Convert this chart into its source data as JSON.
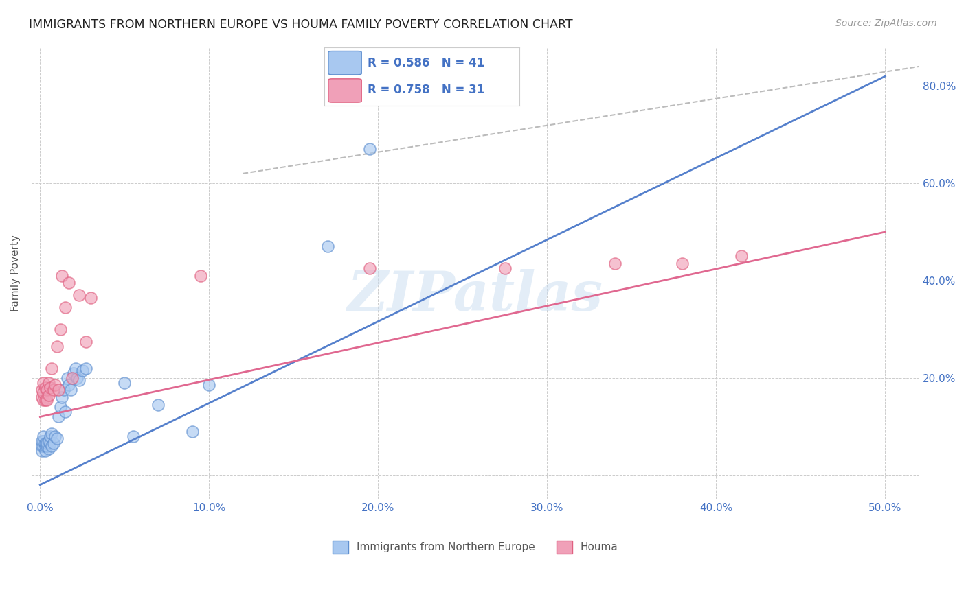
{
  "title": "IMMIGRANTS FROM NORTHERN EUROPE VS HOUMA FAMILY POVERTY CORRELATION CHART",
  "source": "Source: ZipAtlas.com",
  "ylabel": "Family Poverty",
  "xlim": [
    -0.005,
    0.52
  ],
  "ylim": [
    -0.05,
    0.88
  ],
  "x_ticks": [
    0.0,
    0.1,
    0.2,
    0.3,
    0.4,
    0.5
  ],
  "x_tick_labels": [
    "0.0%",
    "10.0%",
    "20.0%",
    "30.0%",
    "40.0%",
    "50.0%"
  ],
  "y_ticks": [
    0.0,
    0.2,
    0.4,
    0.6,
    0.8
  ],
  "y_tick_labels_right": [
    "",
    "20.0%",
    "40.0%",
    "60.0%",
    "80.0%"
  ],
  "legend_label1": "Immigrants from Northern Europe",
  "legend_label2": "Houma",
  "R1": 0.586,
  "N1": 41,
  "R2": 0.758,
  "N2": 31,
  "color_blue": "#A8C8F0",
  "color_blue_edge": "#6090D0",
  "color_pink": "#F0A0B8",
  "color_pink_edge": "#E06080",
  "color_blue_line": "#5580CC",
  "color_pink_line": "#E06890",
  "color_gray_dash": "#BBBBBB",
  "watermark": "ZIPatlas",
  "blue_line_x": [
    0.0,
    0.5
  ],
  "blue_line_y": [
    -0.02,
    0.82
  ],
  "pink_line_x": [
    0.0,
    0.5
  ],
  "pink_line_y": [
    0.12,
    0.5
  ],
  "dash_line_x": [
    0.12,
    0.52
  ],
  "dash_line_y": [
    0.62,
    0.84
  ],
  "blue_points": [
    [
      0.001,
      0.05
    ],
    [
      0.001,
      0.06
    ],
    [
      0.001,
      0.07
    ],
    [
      0.002,
      0.06
    ],
    [
      0.002,
      0.07
    ],
    [
      0.002,
      0.08
    ],
    [
      0.003,
      0.05
    ],
    [
      0.003,
      0.06
    ],
    [
      0.003,
      0.065
    ],
    [
      0.004,
      0.06
    ],
    [
      0.004,
      0.065
    ],
    [
      0.005,
      0.055
    ],
    [
      0.005,
      0.07
    ],
    [
      0.006,
      0.065
    ],
    [
      0.006,
      0.08
    ],
    [
      0.007,
      0.06
    ],
    [
      0.007,
      0.085
    ],
    [
      0.008,
      0.065
    ],
    [
      0.009,
      0.08
    ],
    [
      0.01,
      0.075
    ],
    [
      0.011,
      0.12
    ],
    [
      0.012,
      0.14
    ],
    [
      0.013,
      0.16
    ],
    [
      0.014,
      0.175
    ],
    [
      0.015,
      0.13
    ],
    [
      0.016,
      0.2
    ],
    [
      0.017,
      0.185
    ],
    [
      0.018,
      0.175
    ],
    [
      0.02,
      0.21
    ],
    [
      0.021,
      0.22
    ],
    [
      0.022,
      0.2
    ],
    [
      0.023,
      0.195
    ],
    [
      0.025,
      0.215
    ],
    [
      0.027,
      0.22
    ],
    [
      0.05,
      0.19
    ],
    [
      0.055,
      0.08
    ],
    [
      0.07,
      0.145
    ],
    [
      0.09,
      0.09
    ],
    [
      0.1,
      0.185
    ],
    [
      0.17,
      0.47
    ],
    [
      0.195,
      0.67
    ]
  ],
  "pink_points": [
    [
      0.001,
      0.16
    ],
    [
      0.001,
      0.175
    ],
    [
      0.002,
      0.155
    ],
    [
      0.002,
      0.17
    ],
    [
      0.002,
      0.19
    ],
    [
      0.003,
      0.155
    ],
    [
      0.003,
      0.18
    ],
    [
      0.004,
      0.155
    ],
    [
      0.004,
      0.175
    ],
    [
      0.005,
      0.165
    ],
    [
      0.005,
      0.19
    ],
    [
      0.006,
      0.18
    ],
    [
      0.007,
      0.22
    ],
    [
      0.008,
      0.175
    ],
    [
      0.009,
      0.185
    ],
    [
      0.01,
      0.265
    ],
    [
      0.011,
      0.175
    ],
    [
      0.012,
      0.3
    ],
    [
      0.013,
      0.41
    ],
    [
      0.015,
      0.345
    ],
    [
      0.017,
      0.395
    ],
    [
      0.019,
      0.2
    ],
    [
      0.023,
      0.37
    ],
    [
      0.027,
      0.275
    ],
    [
      0.03,
      0.365
    ],
    [
      0.095,
      0.41
    ],
    [
      0.195,
      0.425
    ],
    [
      0.275,
      0.425
    ],
    [
      0.34,
      0.435
    ],
    [
      0.38,
      0.435
    ],
    [
      0.415,
      0.45
    ]
  ]
}
